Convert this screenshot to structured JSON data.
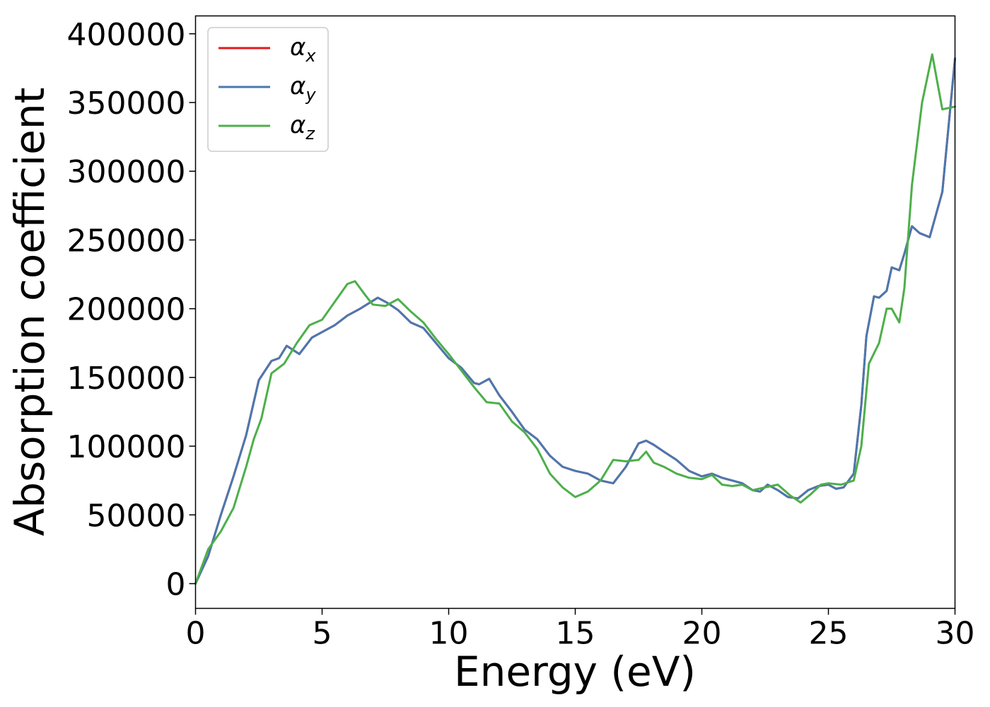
{
  "chart_data": {
    "type": "line",
    "xlabel": "Energy (eV)",
    "ylabel": "Absorption coefficient",
    "xlim": [
      0,
      30
    ],
    "ylim": [
      -18000,
      413000
    ],
    "xticks": [
      "0",
      "5",
      "10",
      "15",
      "20",
      "25",
      "30"
    ],
    "yticks": [
      "0",
      "50000",
      "100000",
      "150000",
      "200000",
      "250000",
      "300000",
      "350000",
      "400000"
    ],
    "grid": false,
    "legend_position": "top-left",
    "series": [
      {
        "name": "α",
        "subscript": "x",
        "color": "#e41a1c",
        "x": [
          0,
          0.5,
          1.0,
          1.5,
          2.0,
          2.5,
          3.0,
          3.3,
          3.6,
          4.1,
          4.6,
          5.0,
          5.5,
          6.0,
          6.5,
          7.2,
          7.6,
          8.0,
          8.5,
          9.0,
          9.5,
          10.0,
          10.5,
          11.0,
          11.2,
          11.6,
          12.0,
          12.5,
          13.0,
          13.5,
          14.0,
          14.5,
          15.0,
          15.5,
          16.0,
          16.5,
          17.0,
          17.5,
          17.8,
          18.1,
          18.5,
          19.0,
          19.5,
          20.0,
          20.4,
          20.8,
          21.2,
          21.6,
          22.0,
          22.3,
          22.6,
          23.0,
          23.4,
          23.8,
          24.2,
          24.6,
          25.0,
          25.3,
          25.6,
          26.0,
          26.3,
          26.5,
          26.8,
          27.0,
          27.3,
          27.5,
          27.8,
          28.0,
          28.3,
          28.6,
          29.0,
          29.5,
          30.0
        ],
        "values": [
          0,
          20000,
          50000,
          78000,
          108000,
          148000,
          162000,
          164000,
          173000,
          167000,
          179000,
          183000,
          188000,
          195000,
          200000,
          208000,
          204000,
          199000,
          190000,
          186000,
          175000,
          164000,
          157000,
          146000,
          145000,
          149000,
          137000,
          125000,
          112000,
          105000,
          93000,
          85000,
          82000,
          80000,
          75000,
          73000,
          85000,
          102000,
          104000,
          101000,
          96000,
          90000,
          82000,
          78000,
          80000,
          77000,
          75000,
          73000,
          68000,
          67000,
          72000,
          68000,
          63000,
          62000,
          68000,
          71000,
          72000,
          69000,
          70000,
          80000,
          130000,
          180000,
          209000,
          208000,
          213000,
          230000,
          228000,
          240000,
          260000,
          255000,
          252000,
          285000,
          382000
        ]
      },
      {
        "name": "α",
        "subscript": "y",
        "color": "#4a78b0",
        "x": [
          0,
          0.5,
          1.0,
          1.5,
          2.0,
          2.5,
          3.0,
          3.3,
          3.6,
          4.1,
          4.6,
          5.0,
          5.5,
          6.0,
          6.5,
          7.2,
          7.6,
          8.0,
          8.5,
          9.0,
          9.5,
          10.0,
          10.5,
          11.0,
          11.2,
          11.6,
          12.0,
          12.5,
          13.0,
          13.5,
          14.0,
          14.5,
          15.0,
          15.5,
          16.0,
          16.5,
          17.0,
          17.5,
          17.8,
          18.1,
          18.5,
          19.0,
          19.5,
          20.0,
          20.4,
          20.8,
          21.2,
          21.6,
          22.0,
          22.3,
          22.6,
          23.0,
          23.4,
          23.8,
          24.2,
          24.6,
          25.0,
          25.3,
          25.6,
          26.0,
          26.3,
          26.5,
          26.8,
          27.0,
          27.3,
          27.5,
          27.8,
          28.0,
          28.3,
          28.6,
          29.0,
          29.5,
          30.0
        ],
        "values": [
          0,
          20000,
          50000,
          78000,
          108000,
          148000,
          162000,
          164000,
          173000,
          167000,
          179000,
          183000,
          188000,
          195000,
          200000,
          208000,
          204000,
          199000,
          190000,
          186000,
          175000,
          164000,
          157000,
          146000,
          145000,
          149000,
          137000,
          125000,
          112000,
          105000,
          93000,
          85000,
          82000,
          80000,
          75000,
          73000,
          85000,
          102000,
          104000,
          101000,
          96000,
          90000,
          82000,
          78000,
          80000,
          77000,
          75000,
          73000,
          68000,
          67000,
          72000,
          68000,
          63000,
          62000,
          68000,
          71000,
          72000,
          69000,
          70000,
          80000,
          130000,
          180000,
          209000,
          208000,
          213000,
          230000,
          228000,
          240000,
          260000,
          255000,
          252000,
          285000,
          382000
        ]
      },
      {
        "name": "α",
        "subscript": "z",
        "color": "#4daf4a",
        "x": [
          0,
          0.5,
          1.0,
          1.5,
          2.0,
          2.3,
          2.6,
          3.0,
          3.5,
          4.0,
          4.5,
          5.0,
          5.5,
          6.0,
          6.3,
          6.7,
          7.0,
          7.5,
          8.0,
          8.5,
          9.0,
          9.5,
          10.0,
          10.5,
          11.0,
          11.5,
          12.0,
          12.5,
          13.0,
          13.5,
          14.0,
          14.5,
          15.0,
          15.5,
          16.0,
          16.5,
          17.0,
          17.5,
          17.8,
          18.1,
          18.5,
          19.0,
          19.5,
          20.0,
          20.4,
          20.8,
          21.2,
          21.6,
          22.0,
          22.5,
          23.0,
          23.5,
          23.9,
          24.3,
          24.7,
          25.0,
          25.5,
          26.0,
          26.3,
          26.6,
          27.0,
          27.3,
          27.5,
          27.8,
          28.0,
          28.3,
          28.7,
          29.1,
          29.5,
          30.0
        ],
        "values": [
          0,
          25000,
          38000,
          55000,
          85000,
          105000,
          120000,
          153000,
          160000,
          175000,
          188000,
          192000,
          205000,
          218000,
          220000,
          210000,
          203000,
          202000,
          207000,
          198000,
          190000,
          178000,
          167000,
          155000,
          143000,
          132000,
          131000,
          118000,
          110000,
          98000,
          80000,
          70000,
          63000,
          67000,
          75000,
          90000,
          89000,
          90000,
          96000,
          88000,
          85000,
          80000,
          77000,
          76000,
          79000,
          72000,
          71000,
          72000,
          68000,
          70000,
          72000,
          64000,
          59000,
          65000,
          72000,
          73000,
          72000,
          75000,
          100000,
          160000,
          175000,
          200000,
          200000,
          190000,
          215000,
          290000,
          350000,
          385000,
          345000,
          347000
        ]
      }
    ]
  }
}
